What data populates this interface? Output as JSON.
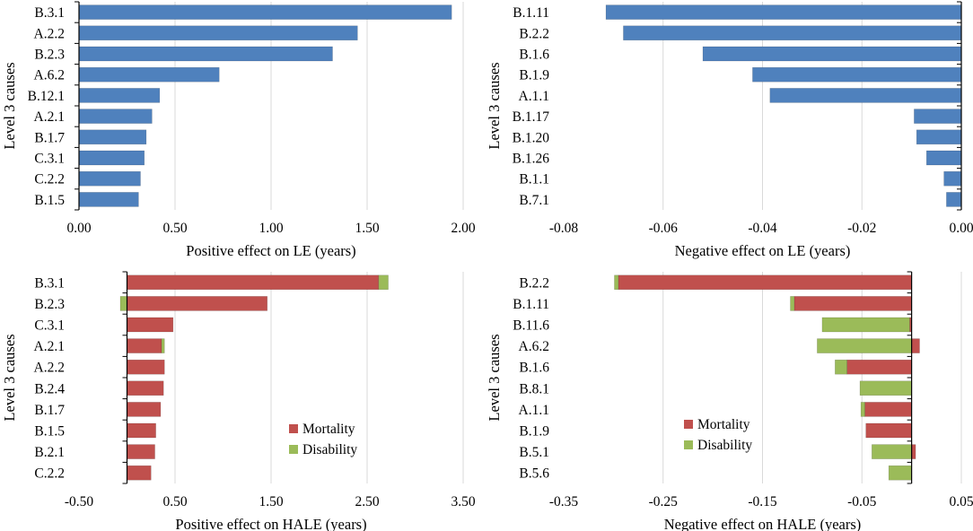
{
  "chart_data": [
    {
      "type": "bar",
      "orientation": "horizontal",
      "title": "",
      "xlabel": "Positive effect on LE (years)",
      "ylabel": "Level 3 causes",
      "xlim": [
        0,
        2
      ],
      "xticks": [
        0,
        0.5,
        1,
        1.5,
        2
      ],
      "xtick_labels": [
        "0.00",
        "0.50",
        "1.00",
        "1.50",
        "2.00"
      ],
      "grid": true,
      "categories": [
        "B.3.1",
        "A.2.2",
        "B.2.3",
        "A.6.2",
        "B.12.1",
        "A.2.1",
        "B.1.7",
        "C.3.1",
        "C.2.2",
        "B.1.5"
      ],
      "series": [
        {
          "name": "LE",
          "color": "#4f81bd",
          "values": [
            1.94,
            1.45,
            1.32,
            0.73,
            0.42,
            0.38,
            0.35,
            0.34,
            0.32,
            0.31
          ]
        }
      ]
    },
    {
      "type": "bar",
      "orientation": "horizontal",
      "title": "",
      "xlabel": "Negative effect on LE (years)",
      "ylabel": "Level 3 causes",
      "xlim": [
        -0.08,
        0
      ],
      "xticks": [
        -0.08,
        -0.06,
        -0.04,
        -0.02,
        0
      ],
      "xtick_labels": [
        "-0.08",
        "-0.06",
        "-0.04",
        "-0.02",
        "0.00"
      ],
      "grid": true,
      "categories": [
        "B.1.11",
        "B.2.2",
        "B.1.6",
        "B.1.9",
        "A.1.1",
        "B.1.17",
        "B.1.20",
        "B.1.26",
        "B.1.1",
        "B.7.1"
      ],
      "series": [
        {
          "name": "LE",
          "color": "#4f81bd",
          "values": [
            -0.0715,
            -0.068,
            -0.052,
            -0.042,
            -0.0385,
            -0.0095,
            -0.009,
            -0.007,
            -0.0035,
            -0.003
          ]
        }
      ]
    },
    {
      "type": "bar",
      "orientation": "horizontal",
      "stacked": true,
      "title": "",
      "xlabel": "Positive effect on HALE (years)",
      "ylabel": "Level 3 causes",
      "xlim": [
        -0.5,
        3.5
      ],
      "xticks": [
        -0.5,
        0.5,
        1.5,
        2.5,
        3.5
      ],
      "xtick_labels": [
        "-0.50",
        "0.50",
        "1.50",
        "2.50",
        "3.50"
      ],
      "grid": true,
      "legend": "bottom-right",
      "categories": [
        "B.3.1",
        "B.2.3",
        "C.3.1",
        "A.2.1",
        "A.2.2",
        "B.2.4",
        "B.1.7",
        "B.1.5",
        "B.2.1",
        "C.2.2"
      ],
      "series": [
        {
          "name": "Mortality",
          "color": "#c0504d",
          "values": [
            2.62,
            1.46,
            0.48,
            0.36,
            0.39,
            0.38,
            0.35,
            0.3,
            0.29,
            0.25
          ]
        },
        {
          "name": "Disability",
          "color": "#9bbb59",
          "values": [
            0.1,
            -0.07,
            0,
            0.03,
            0,
            0,
            0,
            0,
            0,
            0
          ]
        }
      ]
    },
    {
      "type": "bar",
      "orientation": "horizontal",
      "stacked": true,
      "title": "",
      "xlabel": "Negative effect on HALE (years)",
      "ylabel": "Level 3 causes",
      "xlim": [
        -0.35,
        0.05
      ],
      "xticks": [
        -0.35,
        -0.25,
        -0.15,
        -0.05,
        0.05
      ],
      "xtick_labels": [
        "-0.35",
        "-0.25",
        "-0.15",
        "-0.05",
        "0.05"
      ],
      "grid": true,
      "legend": "bottom-left",
      "categories": [
        "B.2.2",
        "B.1.11",
        "B.11.6",
        "A.6.2",
        "B.1.6",
        "B.8.1",
        "A.1.1",
        "B.1.9",
        "B.5.1",
        "B.5.6"
      ],
      "series": [
        {
          "name": "Mortality",
          "color": "#c0504d",
          "values": [
            -0.295,
            -0.118,
            -0.002,
            0.008,
            -0.065,
            0,
            -0.047,
            -0.046,
            0.004,
            0
          ]
        },
        {
          "name": "Disability",
          "color": "#9bbb59",
          "values": [
            -0.004,
            -0.004,
            -0.088,
            -0.095,
            -0.012,
            -0.052,
            -0.004,
            0,
            -0.04,
            -0.023
          ]
        }
      ]
    }
  ]
}
